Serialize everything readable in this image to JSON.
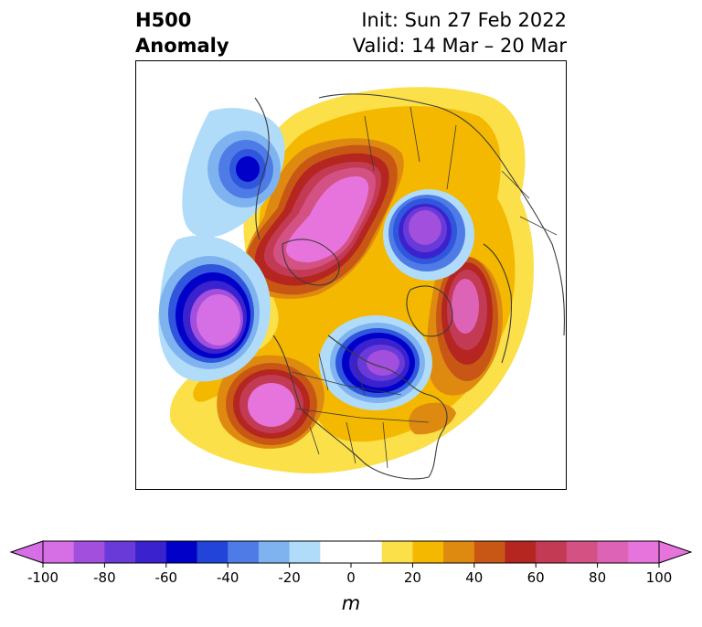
{
  "title": {
    "left_line1": "H500",
    "left_line2": "Anomaly",
    "right_line1": "Init: Sun 27 Feb 2022",
    "right_line2": "Valid: 14 Mar – 20 Mar"
  },
  "colorbar": {
    "ticks": [
      "-100",
      "-80",
      "-60",
      "-40",
      "-20",
      "0",
      "20",
      "40",
      "60",
      "80",
      "100"
    ],
    "tick_values": [
      -100,
      -80,
      -60,
      -40,
      -20,
      0,
      20,
      40,
      60,
      80,
      100
    ],
    "unit": "m",
    "colors": [
      "#d66fe6",
      "#a14fdc",
      "#6a3ad9",
      "#3b22cf",
      "#0000c8",
      "#2244d9",
      "#4f7be6",
      "#7fb3f0",
      "#b0dcf9",
      "#ffffff",
      "#ffffff",
      "#fbe04a",
      "#f4b800",
      "#de8a10",
      "#c85716",
      "#b4261f",
      "#c33a55",
      "#d45184",
      "#dd63b6",
      "#e774dc"
    ],
    "min_extend_color": "#d66fe6",
    "max_extend_color": "#e774dc"
  },
  "map": {
    "projection": "north-polar-stereographic",
    "field": "500 hPa geopotential height anomaly",
    "color_scale": {
      "neg_deep": "#d66fe6",
      "neg_purple": "#8a45dc",
      "neg_blue_dark": "#2a1fcc",
      "neg_blue": "#2f56dd",
      "neg_mid": "#4f7be6",
      "neg_light": "#7fb3f0",
      "neg_pale": "#b0dcf9",
      "pos_yellow": "#fbe04a",
      "pos_gold": "#f4b800",
      "pos_orange": "#de8a10",
      "pos_burnt": "#c85716",
      "pos_red": "#b4261f",
      "pos_rose": "#c33a55",
      "pos_pink": "#d45184",
      "pos_magenta": "#e774dc",
      "coastline": "#3a3a3a"
    }
  }
}
